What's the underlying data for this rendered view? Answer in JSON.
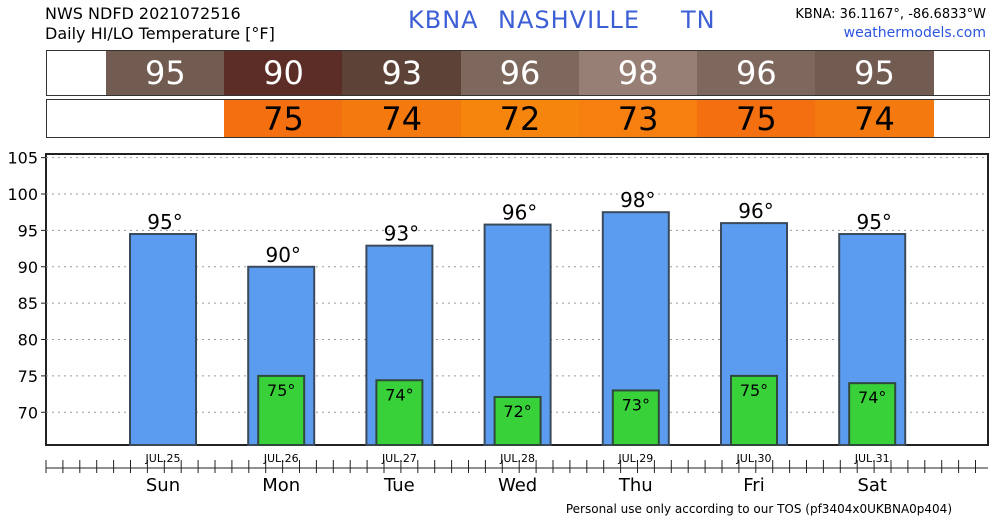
{
  "header": {
    "line1": "NWS NDFD 2021072516",
    "line2": "Daily HI/LO Temperature [°F]",
    "station": "KBNA",
    "city": "NASHVILLE",
    "state": "TN",
    "coords": "KBNA: 36.1167°, -86.6833°W",
    "site": "weathermodels.com"
  },
  "hi_strip": {
    "values": [
      "95",
      "90",
      "93",
      "96",
      "98",
      "96",
      "95"
    ],
    "colors": [
      "#725b50",
      "#5c2d26",
      "#5d4337",
      "#7e675d",
      "#977f75",
      "#7e675d",
      "#725b50"
    ],
    "text_color": "#ffffff"
  },
  "lo_strip": {
    "values": [
      "75",
      "74",
      "72",
      "73",
      "75",
      "74"
    ],
    "colors": [
      "#f46f10",
      "#f47a10",
      "#f6850e",
      "#f67f10",
      "#f46f10",
      "#f47a10"
    ],
    "text_color": "#000000"
  },
  "chart_data": {
    "type": "bar",
    "categories": [
      "Sun",
      "Mon",
      "Tue",
      "Wed",
      "Thu",
      "Fri",
      "Sat"
    ],
    "dates": [
      "JUL.25",
      "JUL.26",
      "JUL.27",
      "JUL.28",
      "JUL.29",
      "JUL.30",
      "JUL.31"
    ],
    "series": [
      {
        "name": "HI",
        "values": [
          94.5,
          90.0,
          92.9,
          95.8,
          97.5,
          96.0,
          94.5
        ],
        "labels": [
          "95°",
          "90°",
          "93°",
          "96°",
          "98°",
          "96°",
          "95°"
        ],
        "color": "#5b9cf0"
      },
      {
        "name": "LO",
        "values": [
          null,
          75.0,
          74.4,
          72.1,
          73.0,
          75.0,
          74.0
        ],
        "labels": [
          "",
          "75°",
          "74°",
          "72°",
          "73°",
          "75°",
          "74°"
        ],
        "color": "#38d13a"
      }
    ],
    "yticks": [
      "70",
      "75",
      "80",
      "85",
      "90",
      "95",
      "100",
      "105"
    ],
    "ylim": [
      65.5,
      105.5
    ],
    "grid": true
  },
  "footer": "Personal use only according to our TOS (pf3404x0UKBNA0p404)"
}
